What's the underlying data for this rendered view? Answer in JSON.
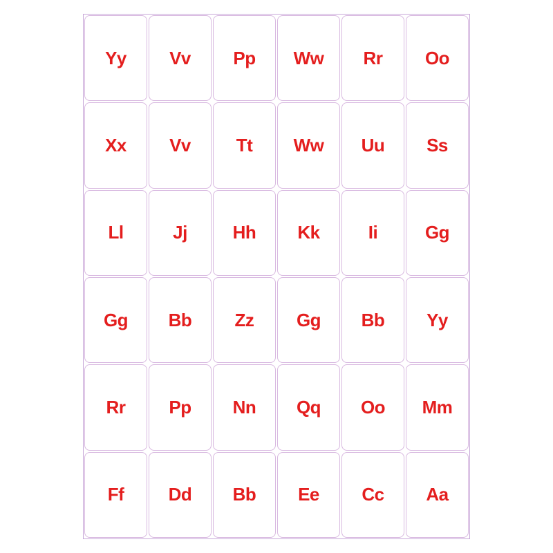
{
  "grid": {
    "type": "table",
    "columns": 6,
    "rows": 6,
    "text_color": "#e41e1e",
    "border_color": "#c8a8d8",
    "card_border_color": "#d8b8e0",
    "background_color": "#ffffff",
    "font_size": 26,
    "font_weight": "bold",
    "card_border_radius": 8,
    "cells": [
      [
        "Yy",
        "Vv",
        "Pp",
        "Ww",
        "Rr",
        "Oo"
      ],
      [
        "Xx",
        "Vv",
        "Tt",
        "Ww",
        "Uu",
        "Ss"
      ],
      [
        "Ll",
        "Jj",
        "Hh",
        "Kk",
        "Ii",
        "Gg"
      ],
      [
        "Gg",
        "Bb",
        "Zz",
        "Gg",
        "Bb",
        "Yy"
      ],
      [
        "Rr",
        "Pp",
        "Nn",
        "Qq",
        "Oo",
        "Mm"
      ],
      [
        "Ff",
        "Dd",
        "Bb",
        "Ee",
        "Cc",
        "Aa"
      ]
    ]
  }
}
